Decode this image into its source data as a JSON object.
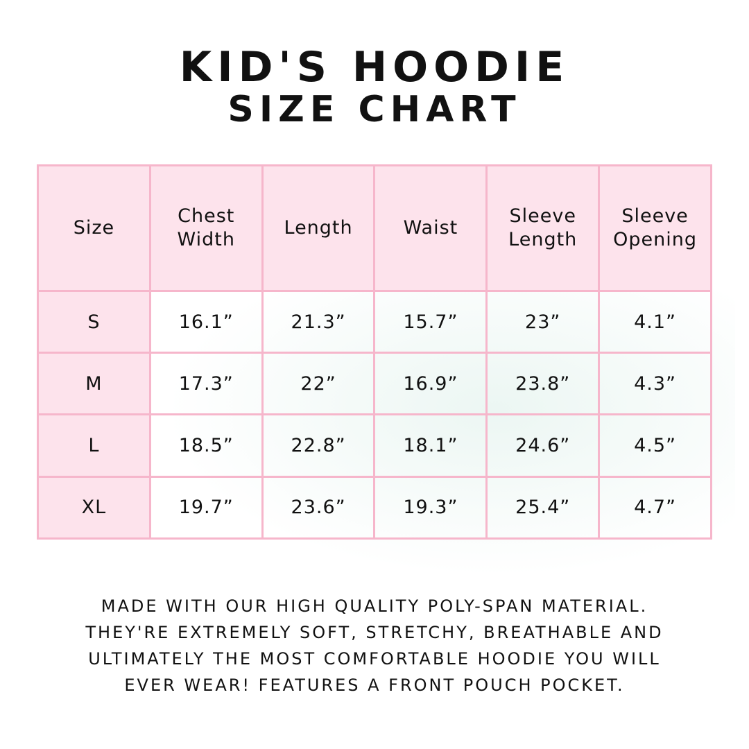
{
  "title": {
    "line1": "Kid's Hoodie",
    "line2": "Size Chart"
  },
  "table": {
    "headers": [
      "Size",
      "Chest Width",
      "Length",
      "Waist",
      "Sleeve Length",
      "Sleeve Opening"
    ],
    "rows": [
      [
        "S",
        "16.1”",
        "21.3”",
        "15.7”",
        "23”",
        "4.1”"
      ],
      [
        "M",
        "17.3”",
        "22”",
        "16.9”",
        "23.8”",
        "4.3”"
      ],
      [
        "L",
        "18.5”",
        "22.8”",
        "18.1”",
        "24.6”",
        "4.5”"
      ],
      [
        "XL",
        "19.7”",
        "23.6”",
        "19.3”",
        "25.4”",
        "4.7”"
      ]
    ]
  },
  "description": [
    "Made with our high quality poly-span material.",
    "They're extremely soft, stretchy, breathable and",
    "ultimately the most comfortable hoodie you will",
    "ever wear! Features a front pouch pocket."
  ],
  "colors": {
    "header_bg": "#fde3ec",
    "border": "#f6b6cb"
  }
}
